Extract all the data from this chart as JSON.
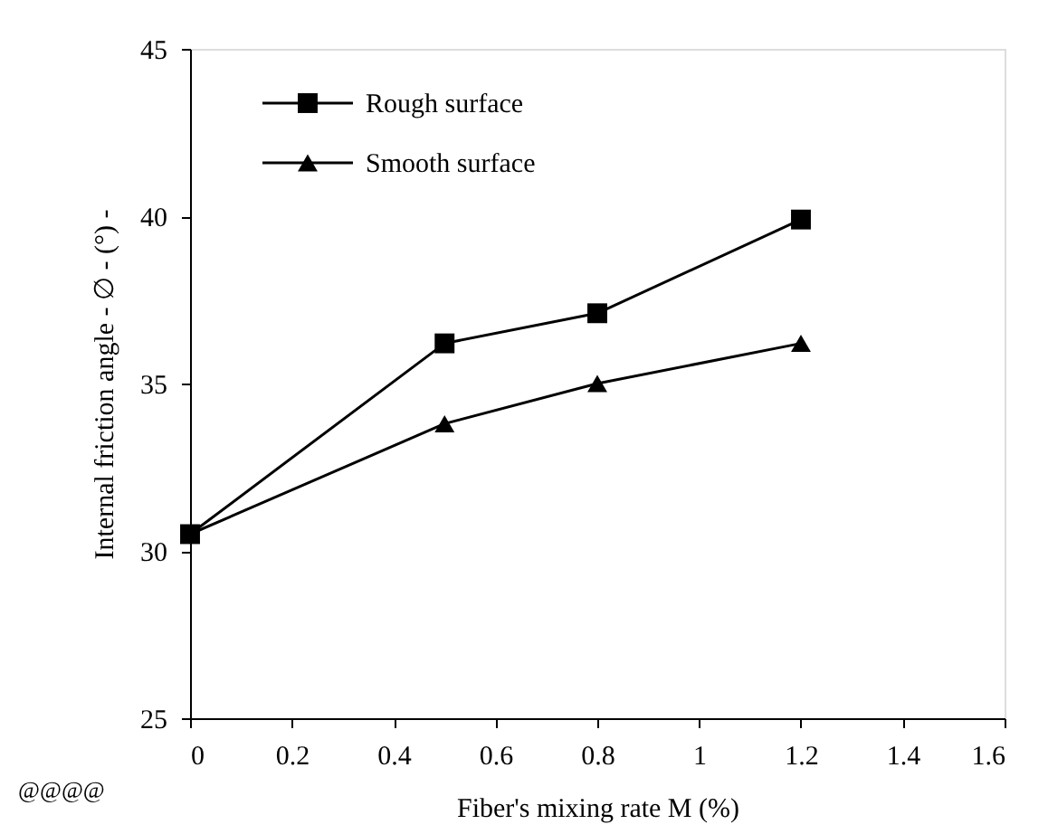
{
  "chart_data": {
    "type": "line",
    "xlabel": "Fiber's mixing rate M (%)",
    "ylabel": "Internal friction angle - ∅ - (°) -",
    "x": [
      0,
      0.5,
      0.8,
      1.2
    ],
    "series": [
      {
        "name": "Rough surface",
        "color": "#000000",
        "marker": "square",
        "values": [
          30.5,
          36.2,
          37.1,
          39.9
        ]
      },
      {
        "name": "Smooth surface",
        "color": "#000000",
        "marker": "triangle",
        "values": [
          30.5,
          33.8,
          35.0,
          36.2
        ]
      }
    ],
    "xlim": [
      0,
      1.6
    ],
    "xticks": [
      0,
      0.2,
      0.4,
      0.6,
      0.8,
      1,
      1.2,
      1.4,
      1.6
    ],
    "ylim": [
      25,
      45
    ],
    "yticks": [
      25,
      30,
      35,
      40,
      45
    ],
    "grid": false,
    "legend": "top left",
    "line_style": "solid",
    "annotations": [
      "@@@@"
    ]
  }
}
